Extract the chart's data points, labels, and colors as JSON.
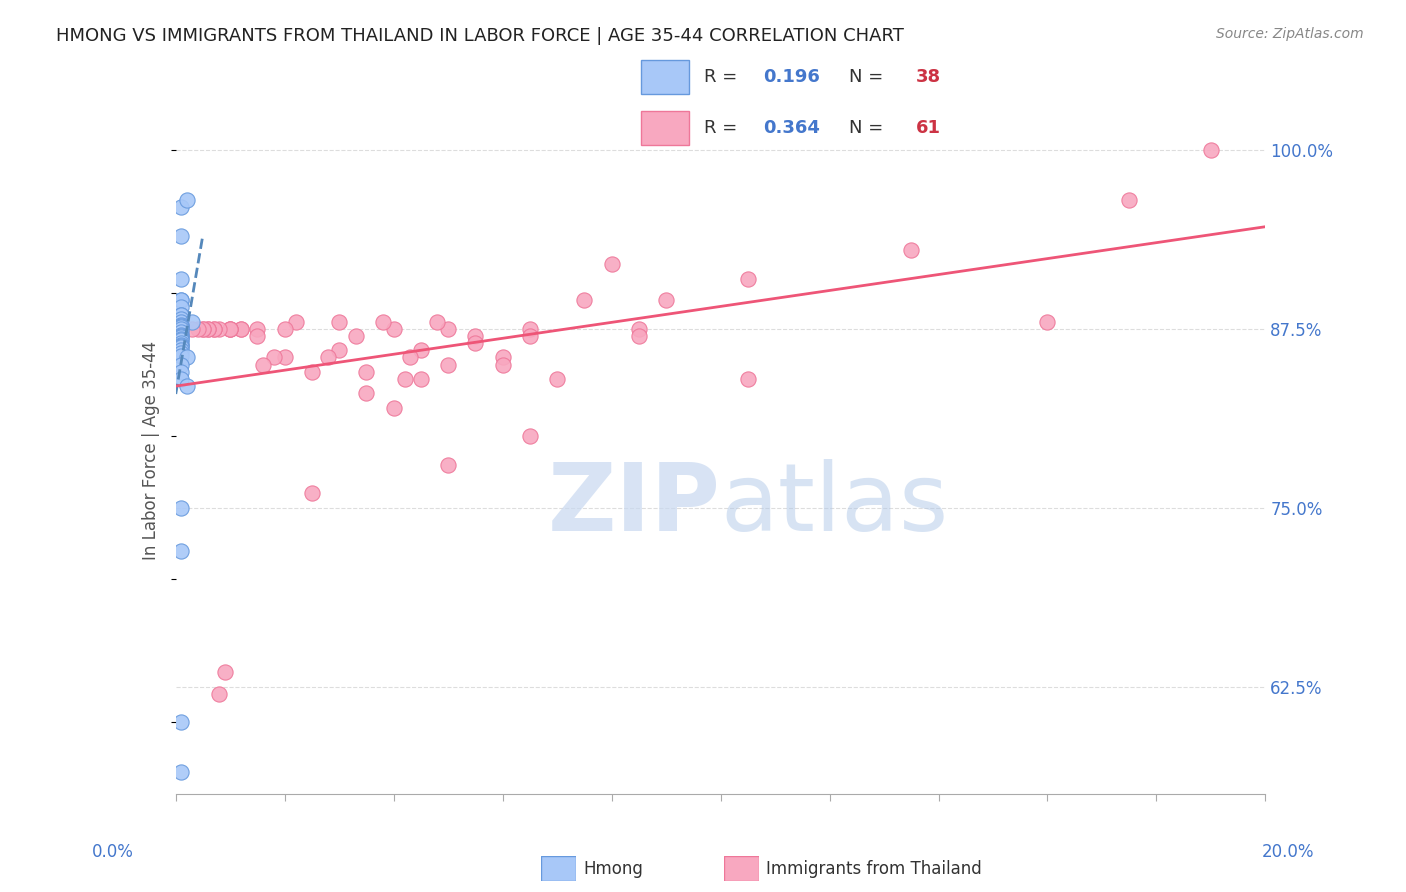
{
  "title": "HMONG VS IMMIGRANTS FROM THAILAND IN LABOR FORCE | AGE 35-44 CORRELATION CHART",
  "source": "Source: ZipAtlas.com",
  "ylabel": "In Labor Force | Age 35-44",
  "ytick_labels": [
    "62.5%",
    "75.0%",
    "87.5%",
    "100.0%"
  ],
  "ytick_values": [
    0.625,
    0.75,
    0.875,
    1.0
  ],
  "xlim": [
    0.0,
    0.2
  ],
  "ylim": [
    0.55,
    1.03
  ],
  "hmong_color": "#a8c8f8",
  "thailand_color": "#f8a8c0",
  "hmong_edge": "#6699dd",
  "thailand_edge": "#ee7799",
  "hmong_line_color": "#5588bb",
  "thailand_line_color": "#ee5577",
  "background_color": "#ffffff",
  "grid_color": "#dddddd",
  "title_color": "#222222",
  "axis_label_color": "#4477cc",
  "hmong_x": [
    0.001,
    0.002,
    0.001,
    0.001,
    0.001,
    0.001,
    0.001,
    0.001,
    0.001,
    0.001,
    0.001,
    0.003,
    0.001,
    0.001,
    0.001,
    0.001,
    0.001,
    0.001,
    0.001,
    0.001,
    0.001,
    0.001,
    0.001,
    0.001,
    0.001,
    0.001,
    0.001,
    0.001,
    0.001,
    0.002,
    0.001,
    0.001,
    0.001,
    0.002,
    0.001,
    0.001,
    0.001,
    0.001
  ],
  "hmong_y": [
    0.96,
    0.965,
    0.94,
    0.91,
    0.895,
    0.895,
    0.89,
    0.885,
    0.885,
    0.882,
    0.88,
    0.88,
    0.878,
    0.877,
    0.876,
    0.875,
    0.873,
    0.871,
    0.87,
    0.869,
    0.868,
    0.867,
    0.865,
    0.864,
    0.863,
    0.862,
    0.86,
    0.858,
    0.856,
    0.855,
    0.85,
    0.845,
    0.84,
    0.835,
    0.75,
    0.72,
    0.6,
    0.565
  ],
  "thailand_x": [
    0.19,
    0.175,
    0.16,
    0.135,
    0.105,
    0.105,
    0.09,
    0.085,
    0.085,
    0.08,
    0.075,
    0.07,
    0.065,
    0.065,
    0.065,
    0.06,
    0.06,
    0.055,
    0.055,
    0.05,
    0.05,
    0.05,
    0.048,
    0.045,
    0.045,
    0.043,
    0.042,
    0.04,
    0.04,
    0.038,
    0.035,
    0.035,
    0.033,
    0.03,
    0.03,
    0.028,
    0.025,
    0.025,
    0.022,
    0.02,
    0.02,
    0.018,
    0.016,
    0.015,
    0.015,
    0.012,
    0.012,
    0.01,
    0.01,
    0.01,
    0.009,
    0.008,
    0.008,
    0.007,
    0.007,
    0.006,
    0.006,
    0.005,
    0.005,
    0.004,
    0.003
  ],
  "thailand_y": [
    1.0,
    0.965,
    0.88,
    0.93,
    0.91,
    0.84,
    0.895,
    0.875,
    0.87,
    0.92,
    0.895,
    0.84,
    0.875,
    0.87,
    0.8,
    0.855,
    0.85,
    0.87,
    0.865,
    0.875,
    0.85,
    0.78,
    0.88,
    0.86,
    0.84,
    0.855,
    0.84,
    0.875,
    0.82,
    0.88,
    0.845,
    0.83,
    0.87,
    0.86,
    0.88,
    0.855,
    0.845,
    0.76,
    0.88,
    0.875,
    0.855,
    0.855,
    0.85,
    0.875,
    0.87,
    0.875,
    0.875,
    0.875,
    0.875,
    0.875,
    0.635,
    0.62,
    0.875,
    0.875,
    0.875,
    0.875,
    0.875,
    0.875,
    0.875,
    0.875,
    0.875
  ]
}
